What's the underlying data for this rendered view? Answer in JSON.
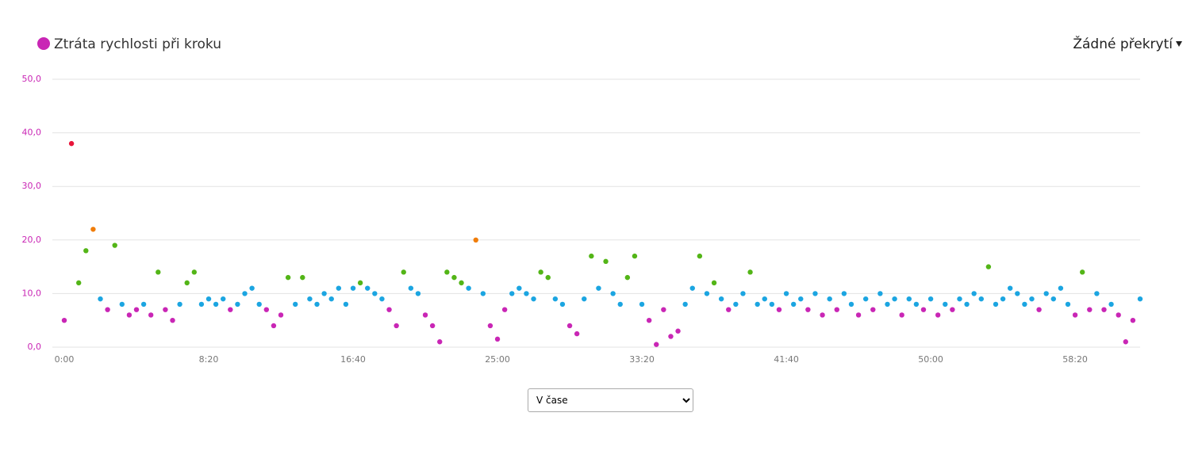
{
  "chart_data": {
    "type": "scatter",
    "series": [
      {
        "name": "Ztráta rychlosti při kroku",
        "color": "#c926b5",
        "x": [
          0,
          25,
          50,
          75,
          100,
          125,
          150,
          175,
          200,
          225,
          250,
          275,
          300,
          325,
          350,
          375,
          400,
          425,
          450,
          475,
          500,
          525,
          550,
          575,
          600,
          625,
          650,
          675,
          700,
          725,
          750,
          775,
          800,
          825,
          850,
          875,
          900,
          925,
          950,
          975,
          1000,
          1025,
          1050,
          1075,
          1100,
          1125,
          1150,
          1175,
          1200,
          1225,
          1250,
          1275,
          1300,
          1325,
          1350,
          1375,
          1400,
          1425,
          1450,
          1475,
          1500,
          1525,
          1550,
          1575,
          1600,
          1625,
          1650,
          1675,
          1700,
          1725,
          1750,
          1775,
          1800,
          1825,
          1850,
          1875,
          1900,
          1925,
          1950,
          1975,
          2000,
          2025,
          2050,
          2075,
          2100,
          2125,
          2150,
          2175,
          2200,
          2225,
          2250,
          2275,
          2300,
          2325,
          2350,
          2375,
          2400,
          2425,
          2450,
          2475,
          2500,
          2525,
          2550,
          2575,
          2600,
          2625,
          2650,
          2675,
          2700,
          2725,
          2750,
          2775,
          2800,
          2825,
          2850,
          2875,
          2900,
          2925,
          2950,
          2975,
          3000,
          3025,
          3050,
          3075,
          3100,
          3125,
          3150,
          3175,
          3200,
          3225,
          3250,
          3275,
          3300,
          3325,
          3350,
          3375,
          3400,
          3425,
          3450,
          3475,
          3500,
          3525,
          3550,
          3575,
          3600,
          3625,
          3650,
          3675,
          3700,
          3725
        ],
        "values": [
          5,
          38,
          12,
          18,
          22,
          9,
          7,
          19,
          8,
          6,
          7,
          8,
          6,
          14,
          7,
          5,
          8,
          12,
          14,
          8,
          9,
          8,
          9,
          7,
          8,
          10,
          11,
          8,
          7,
          4,
          6,
          13,
          8,
          13,
          9,
          8,
          10,
          9,
          11,
          8,
          11,
          12,
          11,
          10,
          9,
          7,
          4,
          14,
          11,
          10,
          6,
          4,
          1,
          14,
          13,
          12,
          11,
          20,
          10,
          4,
          1.5,
          7,
          10,
          11,
          10,
          9,
          14,
          13,
          9,
          8,
          4,
          2.5,
          9,
          17,
          11,
          16,
          10,
          8,
          13,
          17,
          8,
          5,
          0.5,
          7,
          2,
          3,
          8,
          11,
          17,
          10,
          12,
          9,
          7,
          8,
          10,
          14,
          8,
          9,
          8,
          7,
          10,
          8,
          9,
          7,
          10,
          6,
          9,
          7,
          10,
          8,
          6,
          9,
          7,
          10,
          8,
          9,
          6,
          9,
          8,
          7,
          9,
          6,
          8,
          7,
          9,
          8,
          10,
          9,
          15,
          8,
          9,
          11,
          10,
          8,
          9,
          7,
          10,
          9,
          11,
          8,
          6,
          14,
          7,
          10,
          7,
          8,
          6,
          1,
          5,
          9
        ]
      }
    ],
    "color_zones": [
      {
        "from": 0,
        "color": "#c926b5"
      },
      {
        "from": 8,
        "color": "#1ba5e1"
      },
      {
        "from": 12,
        "color": "#53b517"
      },
      {
        "from": 19.5,
        "color": "#f07d0a"
      },
      {
        "from": 25,
        "color": "#e8153a"
      }
    ],
    "xlim": [
      0,
      3725
    ],
    "xticks": [
      {
        "value": 0,
        "label": "0:00"
      },
      {
        "value": 500,
        "label": "8:20"
      },
      {
        "value": 1000,
        "label": "16:40"
      },
      {
        "value": 1500,
        "label": "25:00"
      },
      {
        "value": 2000,
        "label": "33:20"
      },
      {
        "value": 2500,
        "label": "41:40"
      },
      {
        "value": 3000,
        "label": "50:00"
      },
      {
        "value": 3500,
        "label": "58:20"
      }
    ],
    "ylim": [
      0,
      50
    ],
    "yticks": [
      {
        "value": 0,
        "label": "0,0"
      },
      {
        "value": 10,
        "label": "10,0"
      },
      {
        "value": 20,
        "label": "20,0"
      },
      {
        "value": 30,
        "label": "30,0"
      },
      {
        "value": 40,
        "label": "40,0"
      },
      {
        "value": 50,
        "label": "50,0"
      }
    ],
    "grid": true
  },
  "overlay_menu": "Žádné překrytí",
  "x_mode_select": {
    "options": [
      "V čase"
    ]
  }
}
